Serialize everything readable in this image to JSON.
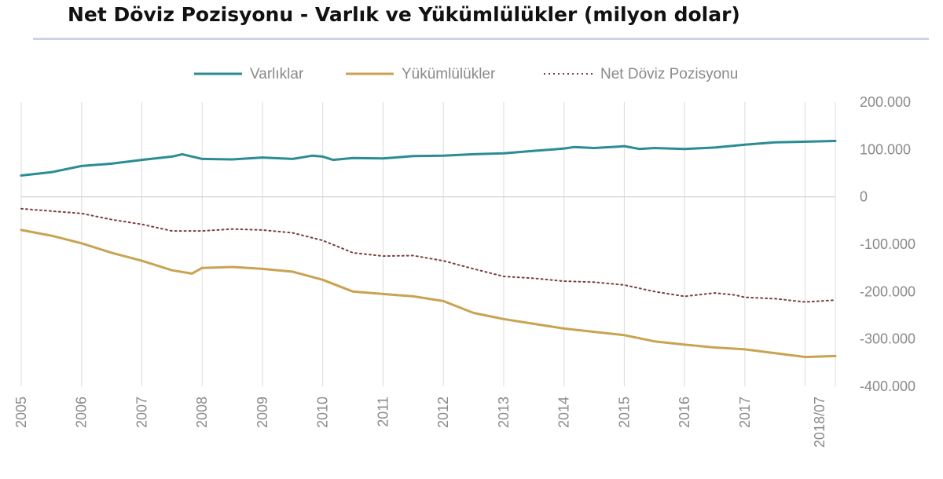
{
  "chart_data": {
    "type": "line",
    "title": "Net Döviz Pozisyonu - Varlık ve Yükümlülükler (milyon dolar)",
    "x_tick_labels": [
      "2005",
      "2006",
      "2007",
      "2008",
      "2009",
      "2010",
      "2011",
      "2012",
      "2013",
      "2014",
      "2015",
      "2016",
      "2017",
      "2018/07"
    ],
    "y_tick_labels": [
      "200.000",
      "100.000",
      "0",
      "-100.000",
      "-200.000",
      "-300.000",
      "-400.000"
    ],
    "ylim": [
      -400000,
      200000
    ],
    "y_ticks": [
      200000,
      100000,
      0,
      -100000,
      -200000,
      -300000,
      -400000
    ],
    "legend_position": "top",
    "grid": "vertical",
    "series": [
      {
        "name": "Varlıklar",
        "color": "#2a8c94",
        "style": "solid",
        "x": [
          2005.0,
          2005.5,
          2006.0,
          2006.5,
          2007.0,
          2007.5,
          2007.67,
          2008.0,
          2008.5,
          2009.0,
          2009.5,
          2009.83,
          2010.0,
          2010.17,
          2010.5,
          2011.0,
          2011.5,
          2012.0,
          2012.5,
          2013.0,
          2013.5,
          2013.83,
          2014.0,
          2014.17,
          2014.5,
          2014.9,
          2015.0,
          2015.25,
          2015.5,
          2016.0,
          2016.5,
          2017.0,
          2017.5,
          2018.5
        ],
        "y": [
          45000,
          52000,
          65000,
          70000,
          78000,
          85000,
          90000,
          80000,
          79000,
          83000,
          80000,
          87000,
          85000,
          78000,
          82000,
          81000,
          86000,
          87000,
          90000,
          92000,
          97000,
          100000,
          102000,
          105000,
          103000,
          106000,
          107000,
          101000,
          103000,
          101000,
          104000,
          110000,
          115000,
          118000
        ]
      },
      {
        "name": "Yükümlülükler",
        "color": "#c9a352",
        "style": "solid",
        "x": [
          2005.0,
          2005.5,
          2006.0,
          2006.5,
          2007.0,
          2007.5,
          2007.83,
          2008.0,
          2008.5,
          2009.0,
          2009.5,
          2010.0,
          2010.5,
          2011.0,
          2011.5,
          2012.0,
          2012.5,
          2013.0,
          2013.5,
          2014.0,
          2014.5,
          2015.0,
          2015.5,
          2016.0,
          2016.5,
          2017.0,
          2017.5,
          2018.0,
          2018.5
        ],
        "y": [
          -70000,
          -82000,
          -98000,
          -118000,
          -135000,
          -155000,
          -162000,
          -150000,
          -148000,
          -152000,
          -158000,
          -175000,
          -200000,
          -205000,
          -210000,
          -220000,
          -245000,
          -258000,
          -268000,
          -278000,
          -285000,
          -292000,
          -305000,
          -312000,
          -318000,
          -322000,
          -330000,
          -338000,
          -336000
        ]
      },
      {
        "name": "Net Döviz Pozisyonu",
        "color": "#7a3e3e",
        "style": "dotted",
        "x": [
          2005.0,
          2005.5,
          2006.0,
          2006.5,
          2007.0,
          2007.5,
          2008.0,
          2008.5,
          2009.0,
          2009.5,
          2010.0,
          2010.5,
          2011.0,
          2011.5,
          2012.0,
          2012.5,
          2013.0,
          2013.5,
          2014.0,
          2014.5,
          2015.0,
          2015.5,
          2016.0,
          2016.5,
          2016.83,
          2017.0,
          2017.5,
          2018.0,
          2018.5
        ],
        "y": [
          -25000,
          -30000,
          -35000,
          -48000,
          -58000,
          -72000,
          -72000,
          -68000,
          -70000,
          -76000,
          -92000,
          -118000,
          -125000,
          -124000,
          -135000,
          -152000,
          -168000,
          -172000,
          -178000,
          -180000,
          -186000,
          -200000,
          -210000,
          -203000,
          -207000,
          -212000,
          -215000,
          -222000,
          -218000
        ]
      }
    ]
  }
}
